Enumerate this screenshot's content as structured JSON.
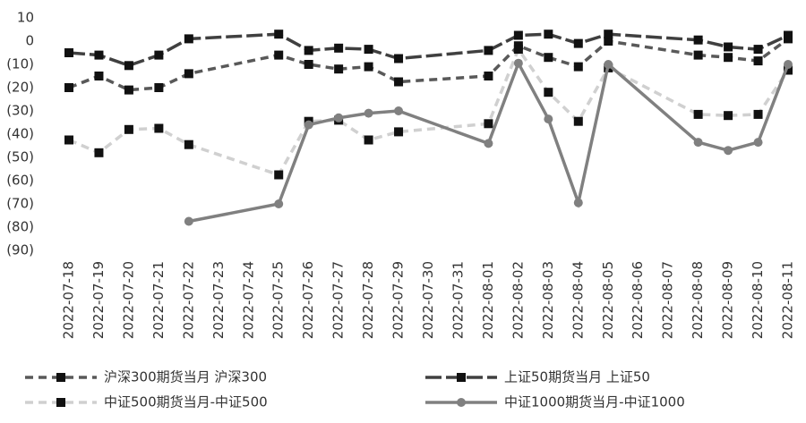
{
  "chart_data": {
    "type": "line",
    "categories": [
      "2022-07-18",
      "2022-07-19",
      "2022-07-20",
      "2022-07-21",
      "2022-07-22",
      "2022-07-23",
      "2022-07-24",
      "2022-07-25",
      "2022-07-26",
      "2022-07-27",
      "2022-07-28",
      "2022-07-29",
      "2022-07-30",
      "2022-07-31",
      "2022-08-01",
      "2022-08-02",
      "2022-08-03",
      "2022-08-04",
      "2022-08-05",
      "2022-08-06",
      "2022-08-07",
      "2022-08-08",
      "2022-08-09",
      "2022-08-10",
      "2022-08-11"
    ],
    "series": [
      {
        "name": "沪深300期货当月 沪深300",
        "color": "#595959",
        "dash": "9,6",
        "marker": "square",
        "values": [
          -20,
          -15,
          -21,
          -20,
          -14,
          null,
          null,
          -6,
          -10,
          -12,
          -11,
          -17.5,
          null,
          null,
          -15,
          -2,
          -7,
          -11,
          0,
          null,
          null,
          -6,
          -7,
          -8.5,
          1
        ]
      },
      {
        "name": "上证50期货当月 上证50",
        "color": "#404040",
        "dash": "18,5",
        "marker": "square",
        "values": [
          -5,
          -6,
          -10.5,
          -6,
          1,
          null,
          null,
          3,
          -4,
          -3,
          -3.5,
          -7.5,
          null,
          null,
          -4,
          2.5,
          3,
          -1,
          3,
          null,
          null,
          0.5,
          -2.5,
          -3.5,
          2.5
        ]
      },
      {
        "name": "中证500期货当月-中证500",
        "color": "#d0d0d0",
        "dash": "9,6",
        "marker": "square",
        "values": [
          -42.5,
          -48,
          -38,
          -37.5,
          -44.5,
          null,
          null,
          -57.5,
          -34.5,
          -34,
          -42.5,
          -39,
          null,
          null,
          -35.5,
          -3.5,
          -22,
          -34.5,
          -11.5,
          null,
          null,
          -31.5,
          -32,
          -31.5,
          -12.5
        ]
      },
      {
        "name": "中证1000期货当月-中证1000",
        "color": "#808080",
        "dash": "none",
        "marker": "circle",
        "values": [
          null,
          null,
          null,
          null,
          -77.5,
          null,
          null,
          -70,
          -36,
          -33,
          -31,
          -30,
          null,
          null,
          -44,
          -9.5,
          -33.5,
          -69.5,
          -10,
          null,
          null,
          -43.5,
          -47,
          -43.5,
          -10
        ]
      }
    ],
    "connect_gaps": true,
    "ylim": [
      -90,
      10
    ],
    "yticks": [
      10,
      0,
      {
        "value": -10,
        "label": "(10)"
      },
      {
        "value": -20,
        "label": "(20)"
      },
      {
        "value": -30,
        "label": "(30)"
      },
      {
        "value": -40,
        "label": "(40)"
      },
      {
        "value": -50,
        "label": "(50)"
      },
      {
        "value": -60,
        "label": "(60)"
      },
      {
        "value": -70,
        "label": "(70)"
      },
      {
        "value": -80,
        "label": "(80)"
      },
      {
        "value": -90,
        "label": "(90)"
      }
    ],
    "grid": false
  }
}
